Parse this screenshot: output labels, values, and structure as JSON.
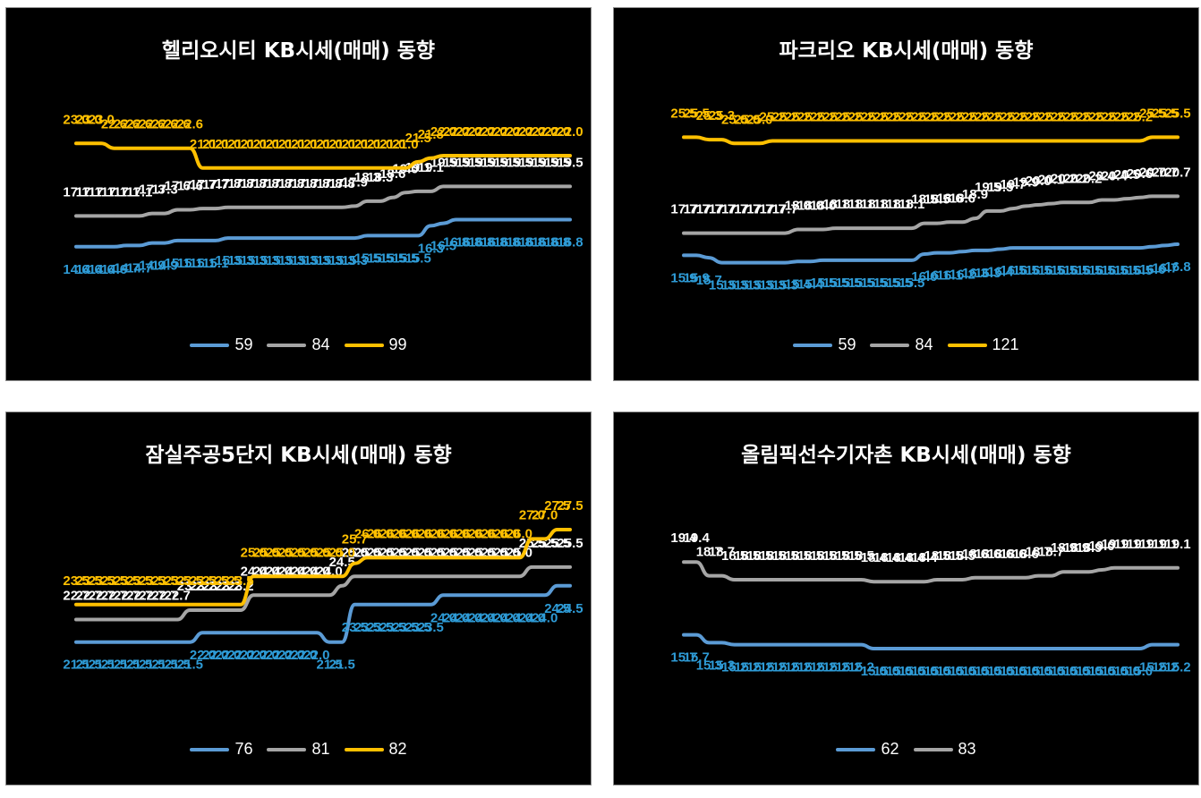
{
  "chart_data": [
    {
      "type": "line",
      "title": "헬리오시티 KB시세(매매) 동향",
      "ylim": [
        10,
        26
      ],
      "series": [
        {
          "name": "59",
          "color": "#5b9bd5",
          "label_color": "#2e9bd6",
          "values": [
            14.6,
            14.6,
            14.6,
            14.6,
            14.7,
            14.7,
            14.9,
            14.9,
            15.1,
            15.1,
            15.1,
            15.1,
            15.3,
            15.3,
            15.3,
            15.3,
            15.3,
            15.3,
            15.3,
            15.3,
            15.3,
            15.3,
            15.3,
            15.5,
            15.5,
            15.5,
            15.5,
            15.5,
            16.3,
            16.5,
            16.8,
            16.8,
            16.8,
            16.8,
            16.8,
            16.8,
            16.8,
            16.8,
            16.8,
            16.8
          ]
        },
        {
          "name": "84",
          "color": "#a5a5a5",
          "label_color": "#ffffff",
          "values": [
            17.1,
            17.1,
            17.1,
            17.1,
            17.1,
            17.1,
            17.3,
            17.3,
            17.6,
            17.6,
            17.7,
            17.7,
            17.8,
            17.8,
            17.8,
            17.8,
            17.8,
            17.8,
            17.8,
            17.8,
            17.8,
            17.8,
            17.9,
            18.3,
            18.3,
            18.6,
            19.0,
            19.1,
            19.1,
            19.5,
            19.5,
            19.5,
            19.5,
            19.5,
            19.5,
            19.5,
            19.5,
            19.5,
            19.5,
            19.5
          ]
        },
        {
          "name": "99",
          "color": "#ffc000",
          "label_color": "#ffc000",
          "values": [
            23.0,
            23.0,
            23.0,
            22.6,
            22.6,
            22.6,
            22.6,
            22.6,
            22.6,
            22.6,
            21.0,
            21.0,
            21.0,
            21.0,
            21.0,
            21.0,
            21.0,
            21.0,
            21.0,
            21.0,
            21.0,
            21.0,
            21.0,
            21.0,
            21.0,
            21.0,
            21.0,
            21.5,
            21.8,
            22.0,
            22.0,
            22.0,
            22.0,
            22.0,
            22.0,
            22.0,
            22.0,
            22.0,
            22.0,
            22.0
          ]
        }
      ]
    },
    {
      "type": "line",
      "title": "파크리오 KB시세(매매) 동향",
      "ylim": [
        12,
        28
      ],
      "series": [
        {
          "name": "59",
          "color": "#5b9bd5",
          "label_color": "#2e9bd6",
          "values": [
            15.9,
            15.9,
            15.7,
            15.3,
            15.3,
            15.3,
            15.3,
            15.3,
            15.3,
            15.4,
            15.4,
            15.5,
            15.5,
            15.5,
            15.5,
            15.5,
            15.5,
            15.5,
            15.5,
            16.0,
            16.1,
            16.1,
            16.2,
            16.3,
            16.3,
            16.4,
            16.5,
            16.5,
            16.5,
            16.5,
            16.5,
            16.5,
            16.5,
            16.5,
            16.5,
            16.5,
            16.5,
            16.6,
            16.7,
            16.8
          ]
        },
        {
          "name": "84",
          "color": "#a5a5a5",
          "label_color": "#ffffff",
          "values": [
            17.7,
            17.7,
            17.7,
            17.7,
            17.7,
            17.7,
            17.7,
            17.7,
            17.7,
            18.0,
            18.0,
            18.0,
            18.1,
            18.1,
            18.1,
            18.1,
            18.1,
            18.1,
            18.1,
            18.5,
            18.5,
            18.6,
            18.6,
            18.9,
            19.5,
            19.5,
            19.7,
            19.9,
            20.0,
            20.1,
            20.2,
            20.2,
            20.2,
            20.4,
            20.4,
            20.5,
            20.6,
            20.7,
            20.7,
            20.7
          ]
        },
        {
          "name": "121",
          "color": "#ffc000",
          "label_color": "#ffc000",
          "values": [
            25.5,
            25.5,
            25.3,
            25.3,
            25.0,
            25.0,
            25.0,
            25.2,
            25.2,
            25.2,
            25.2,
            25.2,
            25.2,
            25.2,
            25.2,
            25.2,
            25.2,
            25.2,
            25.2,
            25.2,
            25.2,
            25.2,
            25.2,
            25.2,
            25.2,
            25.2,
            25.2,
            25.2,
            25.2,
            25.2,
            25.2,
            25.2,
            25.2,
            25.2,
            25.2,
            25.2,
            25.2,
            25.5,
            25.5,
            25.5
          ]
        }
      ]
    },
    {
      "type": "line",
      "title": "잠실주공5단지 KB시세(매매) 동향",
      "ylim": [
        18,
        28.5
      ],
      "series": [
        {
          "name": "76",
          "color": "#5b9bd5",
          "label_color": "#2e9bd6",
          "values": [
            21.5,
            21.5,
            21.5,
            21.5,
            21.5,
            21.5,
            21.5,
            21.5,
            21.5,
            21.5,
            22.0,
            22.0,
            22.0,
            22.0,
            22.0,
            22.0,
            22.0,
            22.0,
            22.0,
            22.0,
            21.5,
            21.5,
            23.5,
            23.5,
            23.5,
            23.5,
            23.5,
            23.5,
            23.5,
            24.0,
            24.0,
            24.0,
            24.0,
            24.0,
            24.0,
            24.0,
            24.0,
            24.0,
            24.5,
            24.5
          ]
        },
        {
          "name": "81",
          "color": "#a5a5a5",
          "label_color": "#ffffff",
          "values": [
            22.7,
            22.7,
            22.7,
            22.7,
            22.7,
            22.7,
            22.7,
            22.7,
            22.7,
            23.2,
            23.2,
            23.2,
            23.2,
            23.2,
            24.0,
            24.0,
            24.0,
            24.0,
            24.0,
            24.0,
            24.0,
            24.5,
            25.0,
            25.0,
            25.0,
            25.0,
            25.0,
            25.0,
            25.0,
            25.0,
            25.0,
            25.0,
            25.0,
            25.0,
            25.0,
            25.0,
            25.5,
            25.5,
            25.5,
            25.5
          ]
        },
        {
          "name": "82",
          "color": "#ffc000",
          "label_color": "#ffc000",
          "values": [
            23.5,
            23.5,
            23.5,
            23.5,
            23.5,
            23.5,
            23.5,
            23.5,
            23.5,
            23.5,
            23.5,
            23.5,
            23.5,
            23.5,
            25.0,
            25.0,
            25.0,
            25.0,
            25.0,
            25.0,
            25.0,
            25.0,
            25.7,
            26.0,
            26.0,
            26.0,
            26.0,
            26.0,
            26.0,
            26.0,
            26.0,
            26.0,
            26.0,
            26.0,
            26.0,
            26.0,
            27.0,
            27.0,
            27.5,
            27.5
          ]
        }
      ]
    },
    {
      "type": "line",
      "title": "올림픽선수기자촌 KB시세(매매) 동향",
      "ylim": [
        12,
        22
      ],
      "series": [
        {
          "name": "62",
          "color": "#5b9bd5",
          "label_color": "#2e9bd6",
          "values": [
            15.7,
            15.7,
            15.3,
            15.3,
            15.2,
            15.2,
            15.2,
            15.2,
            15.2,
            15.2,
            15.2,
            15.2,
            15.2,
            15.2,
            15.2,
            15.0,
            15.0,
            15.0,
            15.0,
            15.0,
            15.0,
            15.0,
            15.0,
            15.0,
            15.0,
            15.0,
            15.0,
            15.0,
            15.0,
            15.0,
            15.0,
            15.0,
            15.0,
            15.0,
            15.0,
            15.0,
            15.0,
            15.2,
            15.2,
            15.2
          ]
        },
        {
          "name": "83",
          "color": "#a5a5a5",
          "label_color": "#ffffff",
          "values": [
            19.4,
            19.4,
            18.7,
            18.7,
            18.5,
            18.5,
            18.5,
            18.5,
            18.5,
            18.5,
            18.5,
            18.5,
            18.5,
            18.5,
            18.5,
            18.4,
            18.4,
            18.4,
            18.4,
            18.4,
            18.5,
            18.5,
            18.5,
            18.6,
            18.6,
            18.6,
            18.6,
            18.6,
            18.7,
            18.7,
            18.9,
            18.9,
            18.9,
            19.0,
            19.1,
            19.1,
            19.1,
            19.1,
            19.1,
            19.1
          ]
        }
      ]
    }
  ]
}
